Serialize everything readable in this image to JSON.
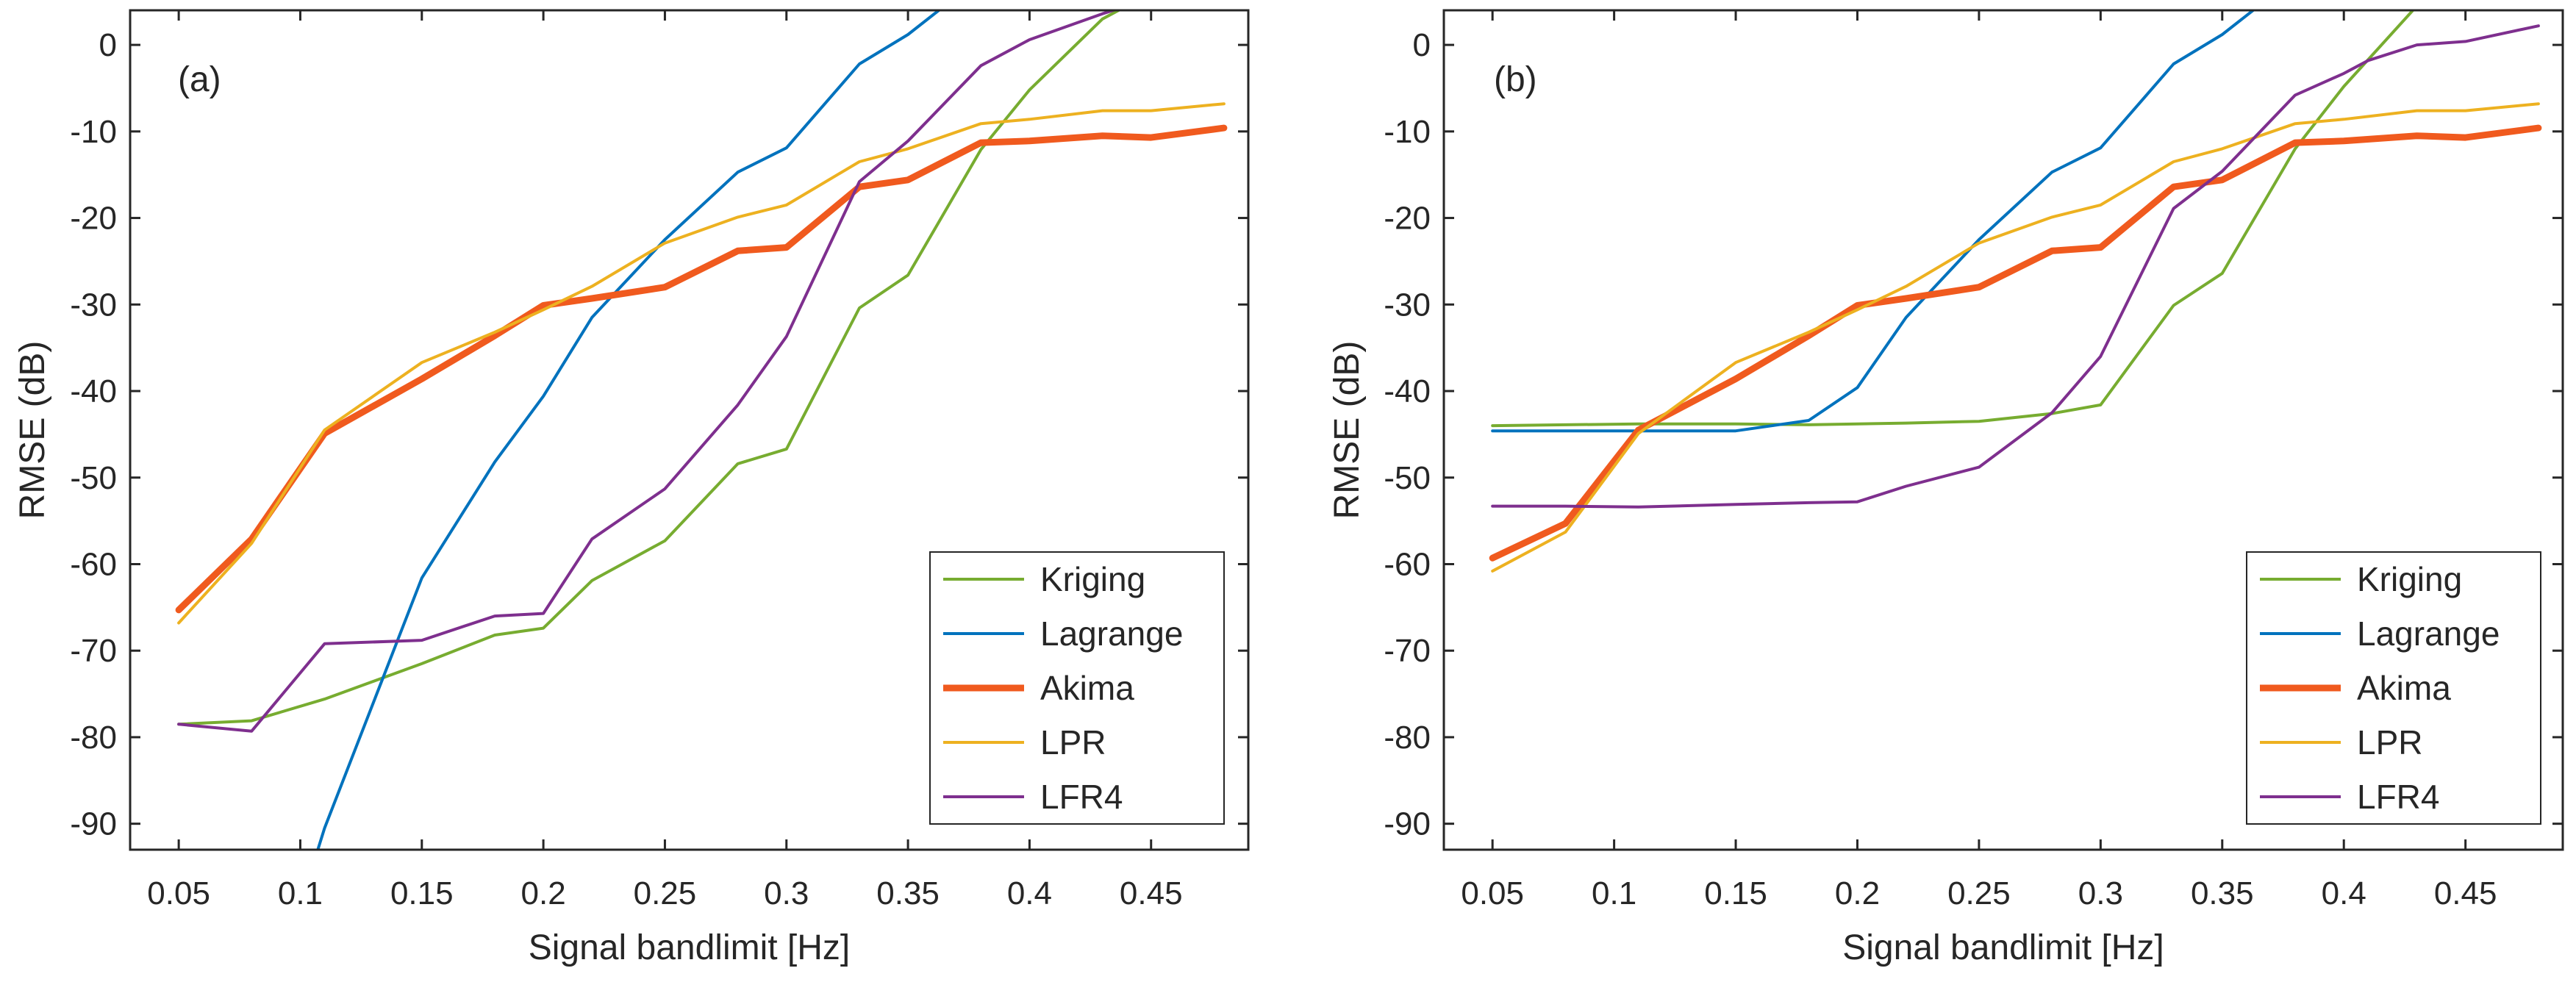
{
  "chart_data": [
    {
      "type": "line",
      "panel_label": "(a)",
      "xlabel": "Signal bandlimit [Hz]",
      "ylabel": "RMSE (dB)",
      "xlim": [
        0.03,
        0.49
      ],
      "ylim": [
        -93,
        4
      ],
      "xticks": [
        0.05,
        0.1,
        0.15,
        0.2,
        0.25,
        0.3,
        0.35,
        0.4,
        0.45
      ],
      "xtick_labels": [
        "0.05",
        "0.1",
        "0.15",
        "0.2",
        "0.25",
        "0.3",
        "0.35",
        "0.4",
        "0.45"
      ],
      "yticks": [
        0,
        -10,
        -20,
        -30,
        -40,
        -50,
        -60,
        -70,
        -80,
        -90
      ],
      "ytick_labels": [
        "0",
        "-10",
        "-20",
        "-30",
        "-40",
        "-50",
        "-60",
        "-70",
        "-80",
        "-90"
      ],
      "legend_position": "bottom-right",
      "series": [
        {
          "name": "Kriging",
          "color": "#77AC30",
          "thick": false,
          "x": [
            0.05,
            0.08,
            0.11,
            0.15,
            0.18,
            0.2,
            0.22,
            0.25,
            0.28,
            0.3,
            0.33,
            0.35,
            0.38,
            0.4,
            0.43,
            0.44
          ],
          "y": [
            -78.5,
            -78.1,
            -75.6,
            -71.5,
            -68.2,
            -67.4,
            -61.9,
            -57.3,
            -48.4,
            -46.7,
            -30.4,
            -26.6,
            -12.1,
            -5.2,
            3.0,
            4.5
          ]
        },
        {
          "name": "Lagrange",
          "color": "#0072BD",
          "thick": false,
          "x": [
            0.105,
            0.11,
            0.15,
            0.18,
            0.2,
            0.22,
            0.25,
            0.28,
            0.3,
            0.33,
            0.35,
            0.365
          ],
          "y": [
            -95,
            -90.5,
            -61.6,
            -48.2,
            -40.6,
            -31.5,
            -22.5,
            -14.7,
            -11.9,
            -2.2,
            1.2,
            4.5
          ]
        },
        {
          "name": "Akima",
          "color": "#F05A1E",
          "thick": true,
          "x": [
            0.05,
            0.08,
            0.11,
            0.15,
            0.18,
            0.2,
            0.22,
            0.25,
            0.28,
            0.3,
            0.33,
            0.35,
            0.38,
            0.4,
            0.43,
            0.45,
            0.48
          ],
          "y": [
            -65.3,
            -57.1,
            -44.9,
            -38.6,
            -33.6,
            -30.1,
            -29.3,
            -28.0,
            -23.8,
            -23.4,
            -16.4,
            -15.6,
            -11.3,
            -11.1,
            -10.5,
            -10.7,
            -9.6
          ]
        },
        {
          "name": "LPR",
          "color": "#EDB120",
          "thick": false,
          "x": [
            0.05,
            0.08,
            0.11,
            0.15,
            0.18,
            0.2,
            0.22,
            0.25,
            0.28,
            0.3,
            0.33,
            0.35,
            0.38,
            0.4,
            0.43,
            0.45,
            0.48
          ],
          "y": [
            -66.8,
            -57.6,
            -44.5,
            -36.7,
            -33.2,
            -30.6,
            -27.9,
            -22.9,
            -19.9,
            -18.5,
            -13.5,
            -12.0,
            -9.1,
            -8.6,
            -7.6,
            -7.6,
            -6.8
          ]
        },
        {
          "name": "LFR4",
          "color": "#7E2F8E",
          "thick": false,
          "x": [
            0.05,
            0.08,
            0.11,
            0.15,
            0.18,
            0.2,
            0.22,
            0.25,
            0.28,
            0.3,
            0.33,
            0.35,
            0.38,
            0.4,
            0.43,
            0.44
          ],
          "y": [
            -78.5,
            -79.3,
            -69.2,
            -68.8,
            -66.0,
            -65.7,
            -57.1,
            -51.3,
            -41.6,
            -33.7,
            -15.8,
            -11.1,
            -2.4,
            0.6,
            3.6,
            4.5
          ]
        }
      ]
    },
    {
      "type": "line",
      "panel_label": "(b)",
      "xlabel": "Signal bandlimit [Hz]",
      "ylabel": "RMSE (dB)",
      "xlim": [
        0.03,
        0.49
      ],
      "ylim": [
        -93,
        4
      ],
      "xticks": [
        0.05,
        0.1,
        0.15,
        0.2,
        0.25,
        0.3,
        0.35,
        0.4,
        0.45
      ],
      "xtick_labels": [
        "0.05",
        "0.1",
        "0.15",
        "0.2",
        "0.25",
        "0.3",
        "0.35",
        "0.4",
        "0.45"
      ],
      "yticks": [
        0,
        -10,
        -20,
        -30,
        -40,
        -50,
        -60,
        -70,
        -80,
        -90
      ],
      "ytick_labels": [
        "0",
        "-10",
        "-20",
        "-30",
        "-40",
        "-50",
        "-60",
        "-70",
        "-80",
        "-90"
      ],
      "legend_position": "bottom-right",
      "series": [
        {
          "name": "Kriging",
          "color": "#77AC30",
          "thick": false,
          "x": [
            0.05,
            0.08,
            0.11,
            0.15,
            0.18,
            0.2,
            0.22,
            0.25,
            0.28,
            0.3,
            0.33,
            0.35,
            0.38,
            0.4,
            0.43
          ],
          "y": [
            -44.0,
            -43.9,
            -43.8,
            -43.8,
            -43.9,
            -43.8,
            -43.7,
            -43.5,
            -42.6,
            -41.6,
            -30.1,
            -26.4,
            -12.0,
            -4.8,
            4.5
          ]
        },
        {
          "name": "Lagrange",
          "color": "#0072BD",
          "thick": false,
          "x": [
            0.05,
            0.08,
            0.11,
            0.15,
            0.18,
            0.2,
            0.22,
            0.25,
            0.28,
            0.3,
            0.33,
            0.35,
            0.365
          ],
          "y": [
            -44.6,
            -44.6,
            -44.6,
            -44.6,
            -43.4,
            -39.6,
            -31.5,
            -22.5,
            -14.7,
            -11.9,
            -2.2,
            1.2,
            4.5
          ]
        },
        {
          "name": "Akima",
          "color": "#F05A1E",
          "thick": true,
          "x": [
            0.05,
            0.08,
            0.11,
            0.15,
            0.18,
            0.2,
            0.22,
            0.25,
            0.28,
            0.3,
            0.33,
            0.35,
            0.38,
            0.4,
            0.43,
            0.45,
            0.48
          ],
          "y": [
            -59.3,
            -55.3,
            -44.5,
            -38.6,
            -33.6,
            -30.1,
            -29.3,
            -28.0,
            -23.8,
            -23.4,
            -16.4,
            -15.6,
            -11.3,
            -11.1,
            -10.5,
            -10.7,
            -9.6
          ]
        },
        {
          "name": "LPR",
          "color": "#EDB120",
          "thick": false,
          "x": [
            0.05,
            0.08,
            0.11,
            0.15,
            0.18,
            0.2,
            0.22,
            0.25,
            0.28,
            0.3,
            0.33,
            0.35,
            0.38,
            0.4,
            0.43,
            0.45,
            0.48
          ],
          "y": [
            -60.8,
            -56.3,
            -44.9,
            -36.7,
            -33.2,
            -30.6,
            -27.9,
            -22.9,
            -19.9,
            -18.5,
            -13.5,
            -12.0,
            -9.1,
            -8.6,
            -7.6,
            -7.6,
            -6.8
          ]
        },
        {
          "name": "LFR4",
          "color": "#7E2F8E",
          "thick": false,
          "x": [
            0.05,
            0.08,
            0.11,
            0.15,
            0.18,
            0.2,
            0.22,
            0.25,
            0.28,
            0.3,
            0.33,
            0.35,
            0.38,
            0.4,
            0.41,
            0.43,
            0.45,
            0.48
          ],
          "y": [
            -53.3,
            -53.3,
            -53.4,
            -53.1,
            -52.9,
            -52.8,
            -51.0,
            -48.8,
            -42.5,
            -36.0,
            -18.9,
            -14.6,
            -5.8,
            -3.3,
            -1.8,
            0.0,
            0.4,
            2.2
          ]
        }
      ]
    }
  ]
}
